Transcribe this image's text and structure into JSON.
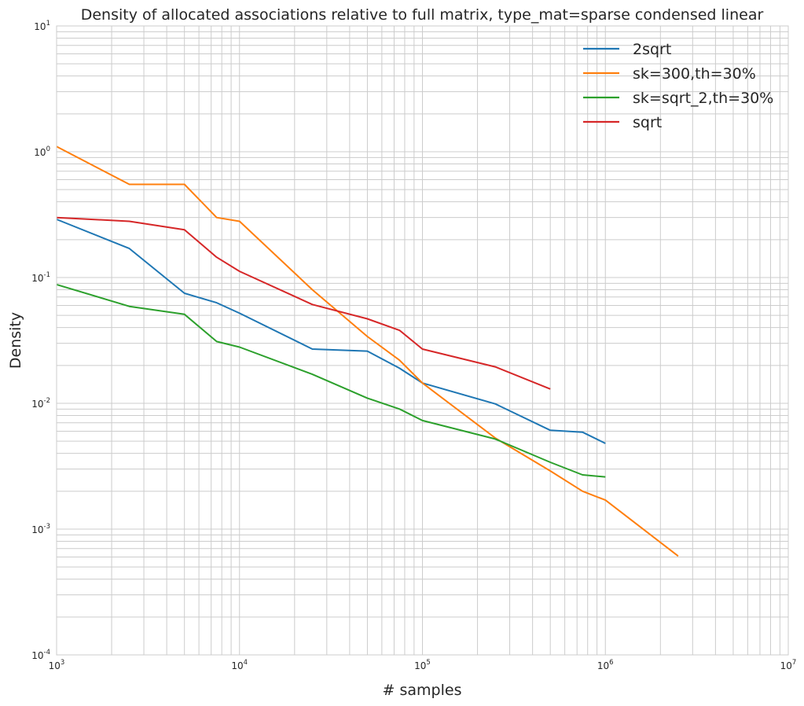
{
  "chart_data": {
    "type": "line",
    "title": "Density of allocated associations relative to full matrix, type_mat=sparse condensed linear",
    "xlabel": "# samples",
    "ylabel": "Density",
    "xscale": "log",
    "yscale": "log",
    "xlim": [
      1000,
      10000000
    ],
    "ylim": [
      0.0001,
      10
    ],
    "grid": true,
    "legend_position": "top-right",
    "x_ticks": [
      {
        "base": "10",
        "exp": "3",
        "value": 1000
      },
      {
        "base": "10",
        "exp": "4",
        "value": 10000
      },
      {
        "base": "10",
        "exp": "5",
        "value": 100000
      },
      {
        "base": "10",
        "exp": "6",
        "value": 1000000
      },
      {
        "base": "10",
        "exp": "7",
        "value": 10000000
      }
    ],
    "y_ticks": [
      {
        "base": "10",
        "exp": "-4",
        "value": 0.0001
      },
      {
        "base": "10",
        "exp": "-3",
        "value": 0.001
      },
      {
        "base": "10",
        "exp": "-2",
        "value": 0.01
      },
      {
        "base": "10",
        "exp": "-1",
        "value": 0.1
      },
      {
        "base": "10",
        "exp": "0",
        "value": 1
      },
      {
        "base": "10",
        "exp": "1",
        "value": 10
      }
    ],
    "series": [
      {
        "name": "2sqrt",
        "color": "#1f77b4",
        "x": [
          1000,
          2500,
          5000,
          7500,
          10000,
          25000,
          50000,
          75000,
          100000,
          250000,
          500000,
          750000,
          1000000
        ],
        "y": [
          0.29,
          0.17,
          0.075,
          0.063,
          0.052,
          0.027,
          0.026,
          0.019,
          0.0145,
          0.0099,
          0.0061,
          0.0059,
          0.0048
        ]
      },
      {
        "name": "sk=300,th=30%",
        "color": "#ff7f0e",
        "x": [
          1000,
          2500,
          5000,
          7500,
          10000,
          25000,
          50000,
          75000,
          100000,
          250000,
          500000,
          750000,
          1000000,
          2500000
        ],
        "y": [
          1.1,
          0.55,
          0.55,
          0.3,
          0.28,
          0.08,
          0.034,
          0.022,
          0.0145,
          0.0053,
          0.0029,
          0.002,
          0.0017,
          0.00061
        ]
      },
      {
        "name": "sk=sqrt_2,th=30%",
        "color": "#2ca02c",
        "x": [
          1000,
          2500,
          5000,
          7500,
          10000,
          25000,
          50000,
          75000,
          100000,
          250000,
          500000,
          750000,
          1000000
        ],
        "y": [
          0.088,
          0.059,
          0.051,
          0.031,
          0.028,
          0.017,
          0.011,
          0.009,
          0.0073,
          0.0052,
          0.0034,
          0.0027,
          0.0026
        ]
      },
      {
        "name": "sqrt",
        "color": "#d62728",
        "x": [
          1000,
          2500,
          5000,
          7500,
          10000,
          25000,
          50000,
          75000,
          100000,
          250000,
          500000
        ],
        "y": [
          0.3,
          0.28,
          0.24,
          0.145,
          0.112,
          0.061,
          0.047,
          0.038,
          0.027,
          0.0195,
          0.013
        ]
      }
    ]
  }
}
